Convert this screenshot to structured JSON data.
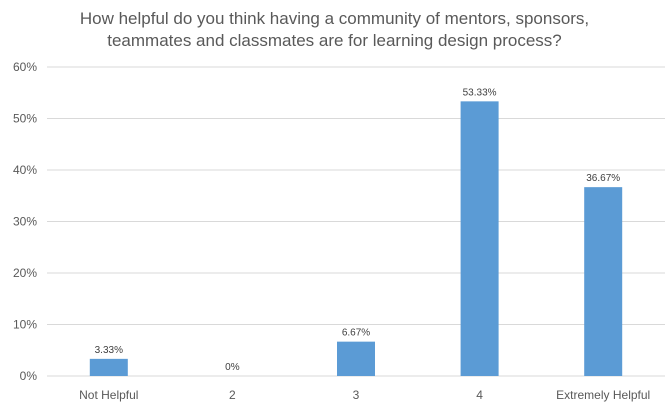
{
  "chart_data": {
    "type": "bar",
    "title_lines": [
      "How helpful do you think having a community of mentors, sponsors,",
      "teammates and classmates are for learning design process?"
    ],
    "categories": [
      "Not Helpful",
      "2",
      "3",
      "4",
      "Extremely Helpful"
    ],
    "values": [
      3.33,
      0,
      6.67,
      53.33,
      36.67
    ],
    "data_labels": [
      "3.33%",
      "0%",
      "6.67%",
      "53.33%",
      "36.67%"
    ],
    "y_ticks": [
      0,
      10,
      20,
      30,
      40,
      50,
      60
    ],
    "y_tick_labels": [
      "0%",
      "10%",
      "20%",
      "30%",
      "40%",
      "50%",
      "60%"
    ],
    "ylim": [
      0,
      60
    ],
    "xlabel": "",
    "ylabel": "",
    "grid": true,
    "legend": "none",
    "bar_color": "#5b9bd5"
  }
}
